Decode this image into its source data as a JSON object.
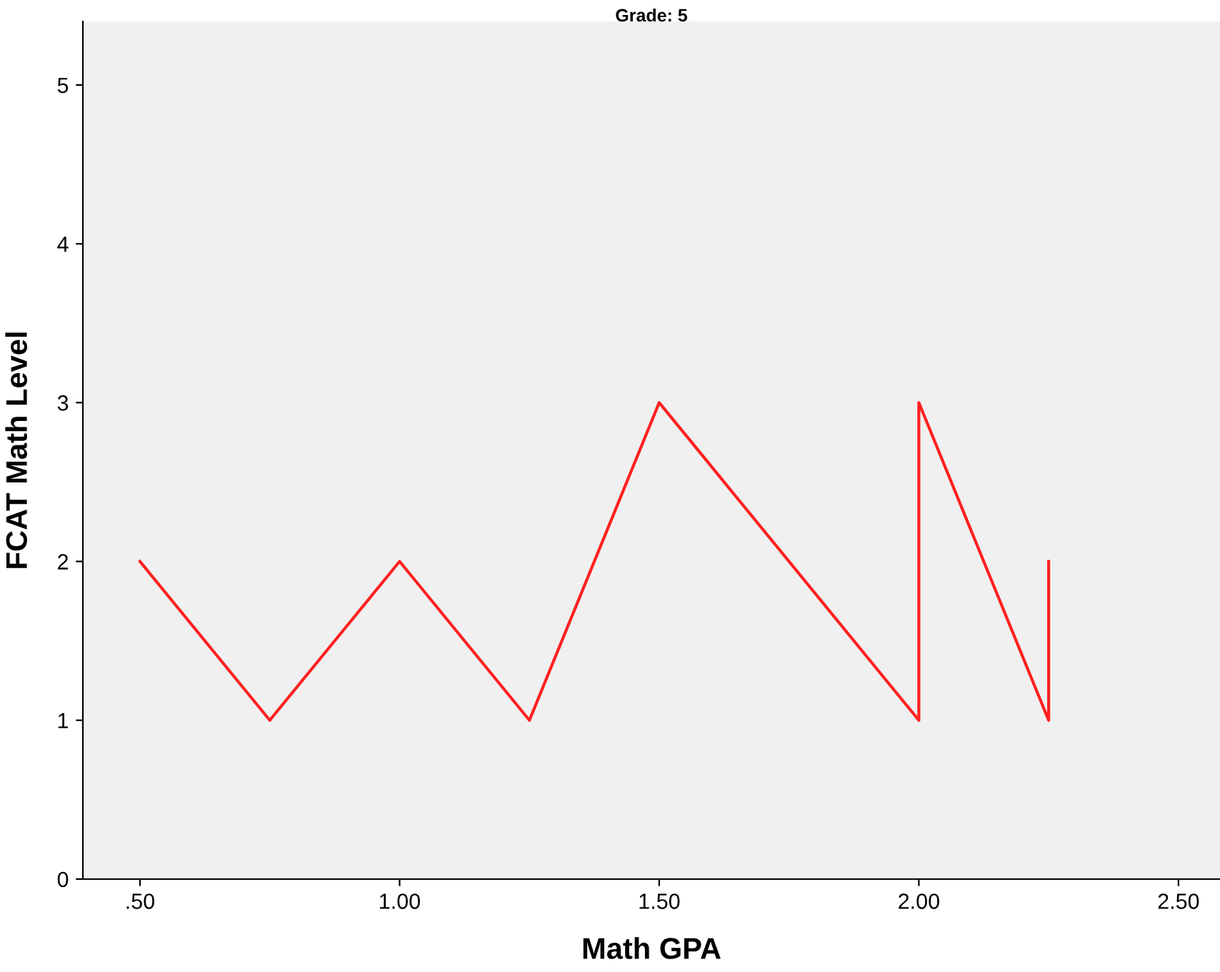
{
  "chart_data": {
    "type": "line",
    "title": "Grade: 5",
    "xlabel": "Math GPA",
    "ylabel": "FCAT Math Level",
    "series": [
      {
        "color": "#ff2020",
        "x": [
          0.5,
          0.75,
          1.0,
          1.25,
          1.5,
          2.0,
          2.0,
          2.25,
          2.25
        ],
        "values": [
          2,
          1,
          2,
          1,
          3,
          1,
          3,
          1,
          2
        ]
      }
    ],
    "xlim": [
      0.39,
      2.58
    ],
    "xticks": [
      {
        "value": 0.5,
        "label": ".50"
      },
      {
        "value": 1.0,
        "label": "1.00"
      },
      {
        "value": 1.5,
        "label": "1.50"
      },
      {
        "value": 2.0,
        "label": "2.00"
      },
      {
        "value": 2.5,
        "label": "2.50"
      }
    ],
    "ylim": [
      0,
      5.4
    ],
    "yticks": [
      0,
      1,
      2,
      3,
      4,
      5
    ],
    "grid": false,
    "legend": false,
    "marker": "none",
    "line_style": "solid"
  }
}
